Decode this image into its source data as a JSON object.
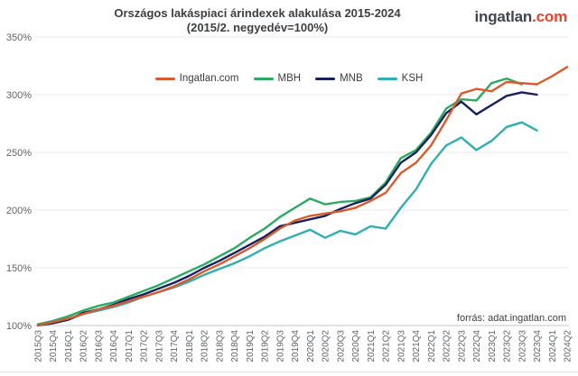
{
  "header": {
    "title_line1": "Országos lakáspiaci árindexek alakulása 2015-2024",
    "title_line2": "(2015/2. negyedév=100%)",
    "logo_text": "ingatlan",
    "logo_suffix": ".com"
  },
  "footer": {
    "source": "forrás: adat.ingatlan.com"
  },
  "colors": {
    "title_text": "#3c4043",
    "axis_text": "#5f6368",
    "gridline": "#e9e9e9",
    "baseline": "#c6c6c6",
    "logo_dark": "#3f4650",
    "logo_red": "#e8432c"
  },
  "chart_data": {
    "type": "line",
    "title": "Országos lakáspiaci árindexek alakulása 2015-2024",
    "subtitle": "(2015/2. negyedév=100%)",
    "source": "forrás: adat.ingatlan.com",
    "grid": true,
    "legend_position": "top",
    "xlabel": "",
    "ylabel": "",
    "ylim": [
      100,
      350
    ],
    "y_ticks": [
      {
        "label": "350%",
        "value": 350
      },
      {
        "label": "300%",
        "value": 300
      },
      {
        "label": "250%",
        "value": 250
      },
      {
        "label": "200%",
        "value": 200
      },
      {
        "label": "150%",
        "value": 150
      },
      {
        "label": "100%",
        "value": 100
      }
    ],
    "categories": [
      "2015Q3",
      "2015Q4",
      "2016Q1",
      "2016Q2",
      "2016Q3",
      "2016Q4",
      "2017Q1",
      "2017Q2",
      "2017Q3",
      "2017Q4",
      "2018Q1",
      "2018Q2",
      "2018Q3",
      "2018Q4",
      "2019Q1",
      "2019Q2",
      "2019Q3",
      "2019Q4",
      "2020Q1",
      "2020Q2",
      "2020Q3",
      "2020Q4",
      "2021Q1",
      "2021Q2",
      "2021Q3",
      "2021Q4",
      "2022Q1",
      "2022Q2",
      "2022Q3",
      "2022Q4",
      "2023Q1",
      "2023Q2",
      "2023Q3",
      "2023Q4",
      "2024Q1",
      "2024Q2"
    ],
    "series": [
      {
        "name": "Ingatlan.com",
        "color": "#DB5A2D",
        "values": [
          100,
          103,
          106,
          110,
          114,
          117,
          121,
          125,
          129,
          134,
          140,
          147,
          153,
          160,
          167,
          175,
          184,
          191,
          195,
          197,
          199,
          202,
          208,
          215,
          232,
          241,
          256,
          278,
          301,
          305,
          303,
          311,
          310,
          309,
          316,
          324
        ]
      },
      {
        "name": "MBH",
        "color": "#2AAA64",
        "values": [
          101,
          104,
          108,
          113,
          117,
          120,
          125,
          130,
          135,
          141,
          147,
          153,
          160,
          167,
          176,
          184,
          194,
          202,
          210,
          205,
          207,
          208,
          211,
          224,
          245,
          252,
          267,
          288,
          296,
          295,
          310,
          314,
          309,
          null,
          null,
          null
        ]
      },
      {
        "name": "MNB",
        "color": "#17215C",
        "values": [
          100,
          102,
          105,
          111,
          114,
          118,
          123,
          127,
          132,
          137,
          143,
          150,
          156,
          163,
          170,
          177,
          186,
          189,
          192,
          195,
          201,
          206,
          210,
          222,
          241,
          250,
          265,
          284,
          294,
          283,
          291,
          299,
          302,
          300,
          null,
          null
        ]
      },
      {
        "name": "KSH",
        "color": "#30AFB2",
        "values": [
          100,
          102,
          105,
          110,
          113,
          116,
          120,
          125,
          129,
          133,
          138,
          144,
          149,
          154,
          160,
          167,
          173,
          178,
          183,
          176,
          182,
          179,
          186,
          184,
          202,
          218,
          240,
          256,
          263,
          252,
          260,
          272,
          276,
          269,
          null,
          null
        ]
      }
    ]
  }
}
